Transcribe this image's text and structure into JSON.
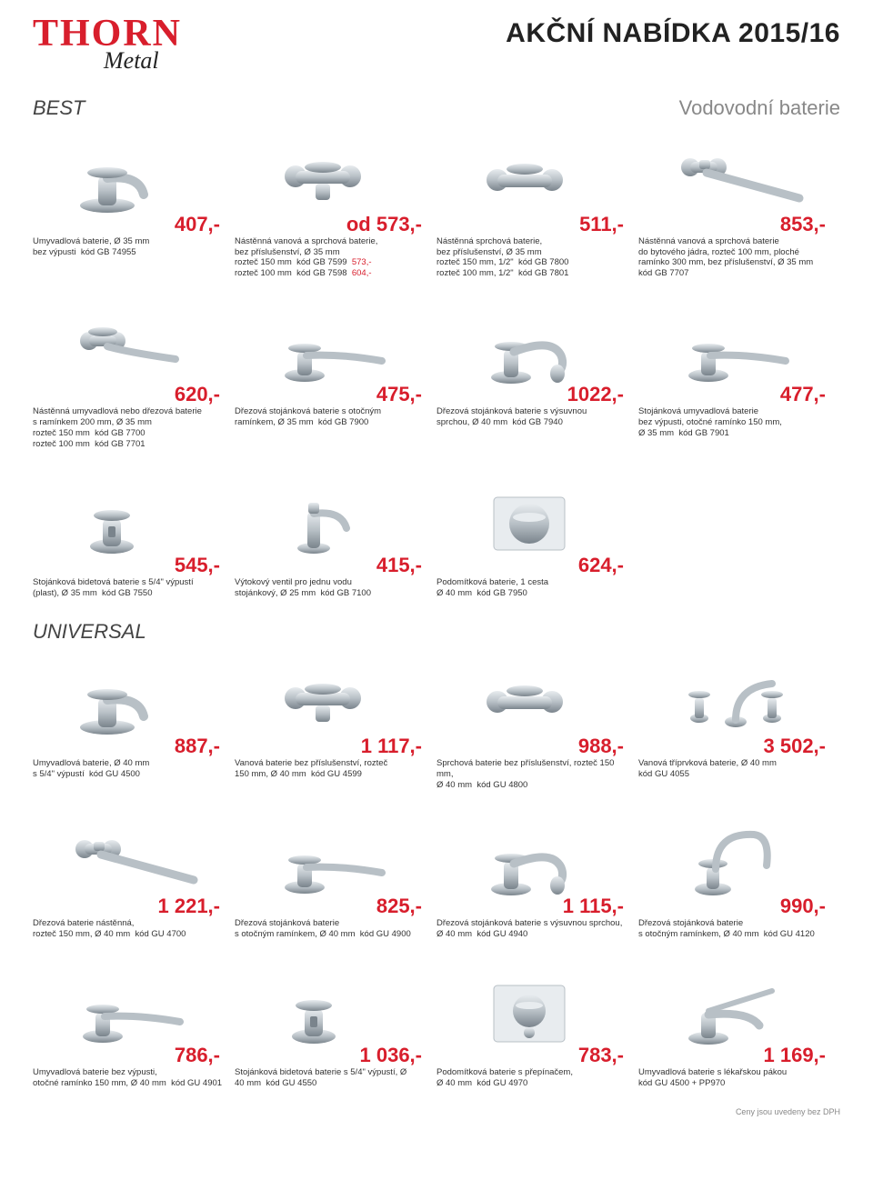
{
  "header": {
    "logo_main": "THORN",
    "logo_sub": "Metal",
    "headline": "AKČNÍ NABÍDKA 2015/16"
  },
  "section1": {
    "left": "BEST",
    "right": "Vodovodní baterie"
  },
  "row1": [
    {
      "price": "407,-",
      "lines": [
        "Umyvadlová baterie, Ø 35 mm"
      ],
      "codes": [
        [
          "bez výpusti",
          "kód GB 74955",
          ""
        ]
      ]
    },
    {
      "price": "od 573,-",
      "lines": [
        "Nástěnná vanová a sprchová baterie,",
        "bez příslušenství, Ø 35 mm"
      ],
      "codes": [
        [
          "rozteč 150 mm",
          "kód GB 7599",
          "573,-"
        ],
        [
          "rozteč 100 mm",
          "kód GB 7598",
          "604,-"
        ]
      ]
    },
    {
      "price": "511,-",
      "lines": [
        "Nástěnná sprchová baterie,",
        "bez příslušenství, Ø 35 mm"
      ],
      "codes": [
        [
          "rozteč 150 mm, 1/2\"",
          "kód GB 7800",
          ""
        ],
        [
          "rozteč 100 mm, 1/2\"",
          "kód GB 7801",
          ""
        ]
      ]
    },
    {
      "price": "853,-",
      "lines": [
        "Nástěnná vanová a sprchová baterie",
        "do bytového jádra, rozteč 100 mm, ploché",
        "ramínko 300 mm, bez příslušenství, Ø 35 mm"
      ],
      "codes": [
        [
          "",
          "kód GB 7707",
          ""
        ]
      ]
    }
  ],
  "row2": [
    {
      "price": "620,-",
      "lines": [
        "Nástěnná umyvadlová nebo dřezová baterie",
        "s ramínkem 200 mm, Ø 35 mm"
      ],
      "codes": [
        [
          "rozteč 150 mm",
          "kód GB 7700",
          ""
        ],
        [
          "rozteč 100 mm",
          "kód GB 7701",
          ""
        ]
      ]
    },
    {
      "price": "475,-",
      "lines": [
        "Dřezová stojánková baterie s otočným"
      ],
      "codes": [
        [
          "ramínkem, Ø 35 mm",
          "kód GB 7900",
          ""
        ]
      ]
    },
    {
      "price": "1022,-",
      "lines": [
        "Dřezová stojánková baterie s výsuvnou"
      ],
      "codes": [
        [
          "sprchou, Ø 40 mm",
          "kód GB 7940",
          ""
        ]
      ]
    },
    {
      "price": "477,-",
      "lines": [
        "Stojánková umyvadlová baterie",
        "bez výpusti, otočné ramínko 150 mm,"
      ],
      "codes": [
        [
          "Ø 35 mm",
          "kód GB 7901",
          ""
        ]
      ]
    }
  ],
  "row3": [
    {
      "price": "545,-",
      "lines": [
        "Stojánková bidetová baterie s 5/4\" výpustí"
      ],
      "codes": [
        [
          "(plast), Ø 35 mm",
          "kód GB 7550",
          ""
        ]
      ]
    },
    {
      "price": "415,-",
      "lines": [
        "Výtokový ventil pro jednu vodu"
      ],
      "codes": [
        [
          "stojánkový, Ø 25 mm",
          "kód GB 7100",
          ""
        ]
      ]
    },
    {
      "price": "624,-",
      "lines": [
        "Podomítková baterie, 1 cesta"
      ],
      "codes": [
        [
          "Ø 40 mm",
          "kód GB 7950",
          ""
        ]
      ]
    }
  ],
  "section2": {
    "name": "UNIVERSAL"
  },
  "row4": [
    {
      "price": "887,-",
      "lines": [
        "Umyvadlová baterie, Ø 40 mm"
      ],
      "codes": [
        [
          "s 5/4\" výpustí",
          "kód GU 4500",
          ""
        ]
      ]
    },
    {
      "price": "1 117,-",
      "lines": [
        "Vanová baterie bez příslušenství, rozteč"
      ],
      "codes": [
        [
          "150 mm, Ø 40 mm",
          "kód GU 4599",
          ""
        ]
      ]
    },
    {
      "price": "988,-",
      "lines": [
        "Sprchová baterie bez příslušenství, rozteč 150 mm,"
      ],
      "codes": [
        [
          "Ø 40 mm",
          "kód GU 4800",
          ""
        ]
      ]
    },
    {
      "price": "3 502,-",
      "lines": [
        "Vanová tříprvková baterie, Ø 40 mm"
      ],
      "codes": [
        [
          "",
          "kód GU 4055",
          ""
        ]
      ]
    }
  ],
  "row5": [
    {
      "price": "1 221,-",
      "lines": [
        "Dřezová baterie nástěnná,"
      ],
      "codes": [
        [
          "rozteč 150 mm, Ø 40 mm",
          "kód GU 4700",
          ""
        ]
      ]
    },
    {
      "price": "825,-",
      "lines": [
        "Dřezová stojánková baterie"
      ],
      "codes": [
        [
          "s otočným ramínkem, Ø 40 mm",
          "kód GU 4900",
          ""
        ]
      ]
    },
    {
      "price": "1 115,-",
      "lines": [
        "Dřezová stojánková baterie s výsuvnou sprchou,"
      ],
      "codes": [
        [
          "Ø 40 mm",
          "kód GU 4940",
          ""
        ]
      ]
    },
    {
      "price": "990,-",
      "lines": [
        "Dřezová stojánková baterie"
      ],
      "codes": [
        [
          "s otočným ramínkem, Ø 40 mm",
          "kód GU 4120",
          ""
        ]
      ]
    }
  ],
  "row6": [
    {
      "price": "786,-",
      "lines": [
        "Umyvadlová baterie bez výpusti,"
      ],
      "codes": [
        [
          "otočné ramínko 150 mm, Ø 40 mm",
          "kód GU 4901",
          ""
        ]
      ]
    },
    {
      "price": "1 036,-",
      "lines": [
        "Stojánková bidetová baterie s 5/4\" výpustí, Ø"
      ],
      "codes": [
        [
          "40 mm",
          "kód GU 4550",
          ""
        ]
      ]
    },
    {
      "price": "783,-",
      "lines": [
        "Podomítková baterie s přepínačem,"
      ],
      "codes": [
        [
          "Ø 40 mm",
          "kód GU 4970",
          ""
        ]
      ]
    },
    {
      "price": "1 169,-",
      "lines": [
        "Umyvadlová baterie s lékařskou pákou"
      ],
      "codes": [
        [
          "",
          "kód GU 4500 + PP970",
          ""
        ]
      ]
    }
  ],
  "footnote": "Ceny jsou uvedeny bez DPH",
  "colors": {
    "red": "#d81e2c",
    "chrome1": "#e8ecef",
    "chrome2": "#b8c0c6",
    "chrome3": "#7a848c"
  }
}
